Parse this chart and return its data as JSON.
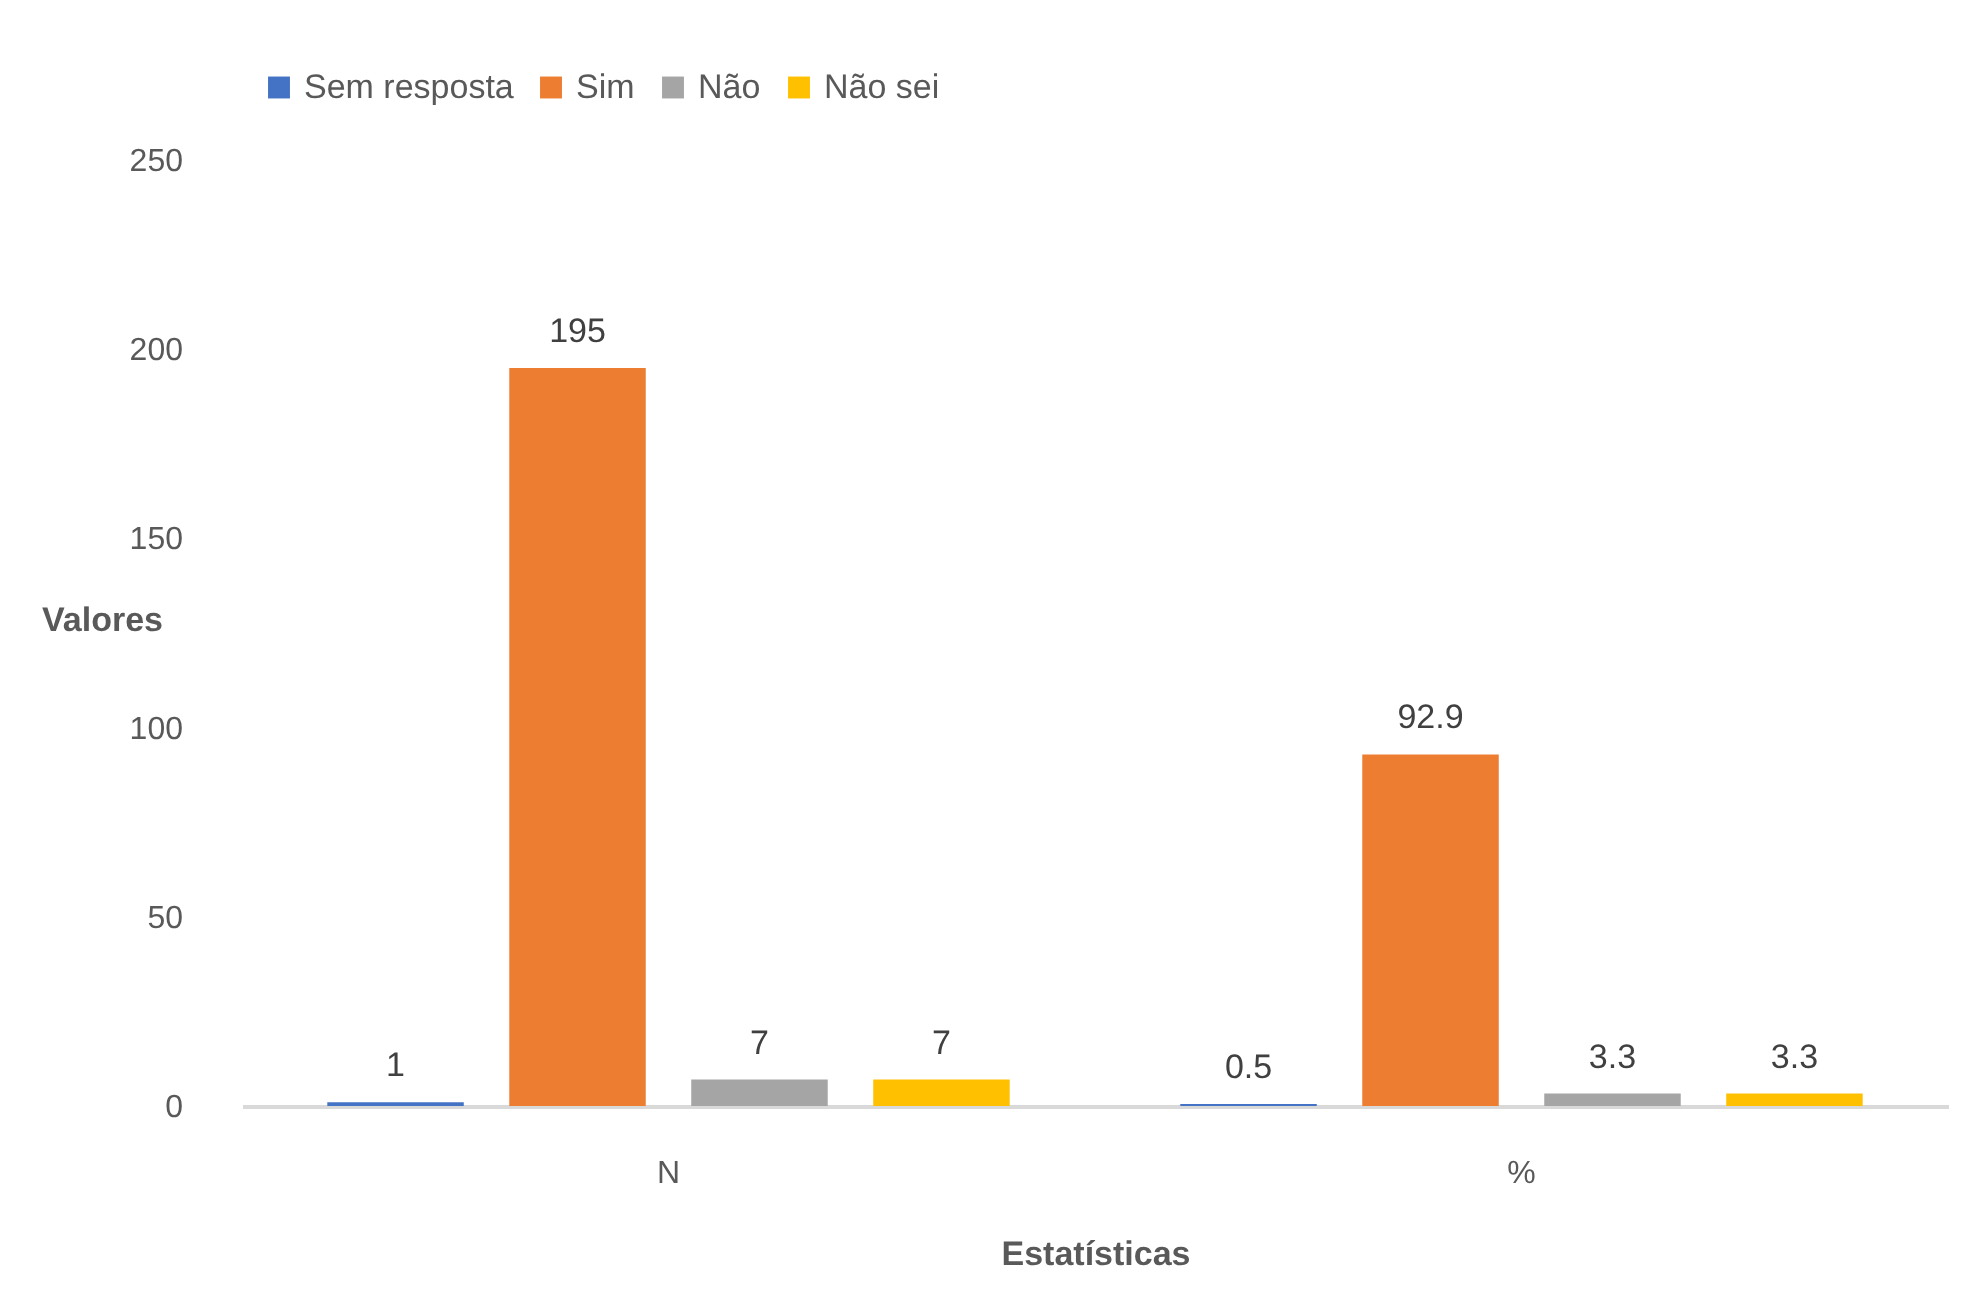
{
  "chart_data": {
    "type": "bar",
    "xlabel": "Estatísticas",
    "ylabel": "Valores",
    "categories": [
      "N",
      "%"
    ],
    "series": [
      {
        "name": "Sem resposta",
        "color": "#4472c4",
        "values": [
          1,
          0.5
        ]
      },
      {
        "name": "Sim",
        "color": "#ed7d31",
        "values": [
          195,
          92.9
        ]
      },
      {
        "name": "Não",
        "color": "#a5a5a5",
        "values": [
          7,
          3.3
        ]
      },
      {
        "name": "Não sei",
        "color": "#ffc000",
        "values": [
          7,
          3.3
        ]
      }
    ],
    "ylim": [
      0,
      250
    ],
    "yticks": [
      0,
      50,
      100,
      150,
      200,
      250
    ],
    "grid": false,
    "legend": "top",
    "data_labels": true
  }
}
